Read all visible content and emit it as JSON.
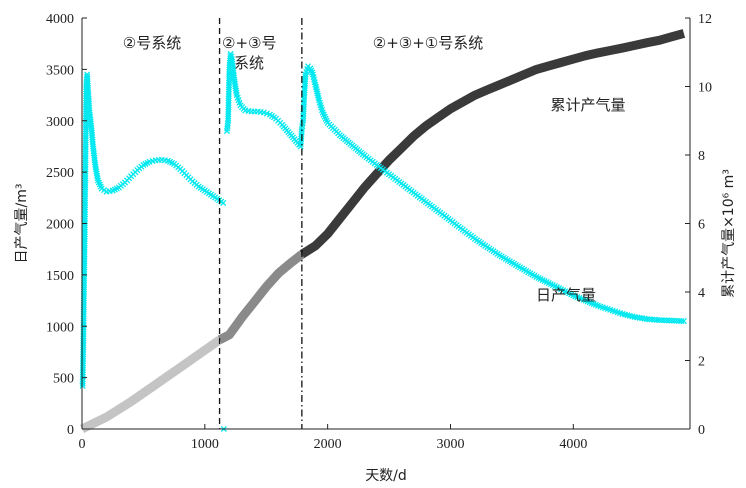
{
  "chart_data": {
    "type": "scatter",
    "xlabel": "天数/d",
    "ylabel_left": "日产气量/m³",
    "ylabel_right": "累计产气量×10⁶ m³",
    "xlim": [
      0,
      4950
    ],
    "ylim_left": [
      0,
      4000
    ],
    "ylim_right": [
      0,
      12
    ],
    "x_ticks": [
      0,
      1000,
      2000,
      3000,
      4000
    ],
    "y_ticks_left": [
      0,
      500,
      1000,
      1500,
      2000,
      2500,
      3000,
      3500,
      4000
    ],
    "y_ticks_right": [
      0,
      2,
      4,
      6,
      8,
      10,
      12
    ],
    "grid": false,
    "stage_dividers": [
      {
        "x": 1120,
        "style": "dashed"
      },
      {
        "x": 1790,
        "style": "dashdot"
      }
    ],
    "stage_labels": [
      "②号系统",
      "②+③号系统",
      "②+③+①号系统"
    ],
    "series": [
      {
        "name": "日产气量",
        "axis": "left",
        "marker": "x",
        "color": "#00e8f0",
        "points": [
          [
            5,
            420
          ],
          [
            10,
            750
          ],
          [
            15,
            1250
          ],
          [
            22,
            1850
          ],
          [
            28,
            2550
          ],
          [
            35,
            3350
          ],
          [
            42,
            3450
          ],
          [
            50,
            3300
          ],
          [
            60,
            3100
          ],
          [
            75,
            2950
          ],
          [
            90,
            2750
          ],
          [
            110,
            2550
          ],
          [
            130,
            2420
          ],
          [
            160,
            2340
          ],
          [
            200,
            2310
          ],
          [
            250,
            2320
          ],
          [
            300,
            2350
          ],
          [
            350,
            2400
          ],
          [
            400,
            2460
          ],
          [
            450,
            2520
          ],
          [
            500,
            2570
          ],
          [
            550,
            2600
          ],
          [
            600,
            2615
          ],
          [
            650,
            2620
          ],
          [
            700,
            2610
          ],
          [
            750,
            2580
          ],
          [
            800,
            2530
          ],
          [
            850,
            2470
          ],
          [
            900,
            2410
          ],
          [
            950,
            2360
          ],
          [
            1000,
            2320
          ],
          [
            1050,
            2280
          ],
          [
            1100,
            2240
          ],
          [
            1150,
            2200
          ],
          [
            1155,
            0
          ],
          [
            1180,
            2900
          ],
          [
            1190,
            3000
          ],
          [
            1200,
            3520
          ],
          [
            1210,
            3650
          ],
          [
            1220,
            3600
          ],
          [
            1240,
            3400
          ],
          [
            1260,
            3250
          ],
          [
            1290,
            3150
          ],
          [
            1330,
            3100
          ],
          [
            1380,
            3090
          ],
          [
            1430,
            3090
          ],
          [
            1480,
            3080
          ],
          [
            1530,
            3060
          ],
          [
            1580,
            3020
          ],
          [
            1630,
            2960
          ],
          [
            1680,
            2890
          ],
          [
            1730,
            2820
          ],
          [
            1780,
            2750
          ],
          [
            1790,
            2920
          ],
          [
            1800,
            3000
          ],
          [
            1810,
            3250
          ],
          [
            1820,
            3450
          ],
          [
            1840,
            3530
          ],
          [
            1860,
            3510
          ],
          [
            1880,
            3450
          ],
          [
            1900,
            3350
          ],
          [
            1930,
            3200
          ],
          [
            1960,
            3080
          ],
          [
            2000,
            2980
          ],
          [
            2100,
            2860
          ],
          [
            2200,
            2760
          ],
          [
            2300,
            2660
          ],
          [
            2400,
            2570
          ],
          [
            2500,
            2480
          ],
          [
            2600,
            2390
          ],
          [
            2700,
            2300
          ],
          [
            2800,
            2210
          ],
          [
            2900,
            2120
          ],
          [
            3000,
            2030
          ],
          [
            3100,
            1940
          ],
          [
            3200,
            1850
          ],
          [
            3300,
            1770
          ],
          [
            3400,
            1690
          ],
          [
            3500,
            1620
          ],
          [
            3600,
            1550
          ],
          [
            3700,
            1480
          ],
          [
            3800,
            1420
          ],
          [
            3900,
            1360
          ],
          [
            4000,
            1300
          ],
          [
            4100,
            1250
          ],
          [
            4200,
            1200
          ],
          [
            4300,
            1160
          ],
          [
            4400,
            1120
          ],
          [
            4500,
            1090
          ],
          [
            4600,
            1070
          ],
          [
            4700,
            1060
          ],
          [
            4800,
            1055
          ],
          [
            4900,
            1050
          ]
        ]
      },
      {
        "name": "累计产气量",
        "axis": "right",
        "segments": [
          {
            "color": "#c4c4c4",
            "points": [
              [
                0,
                0
              ],
              [
                200,
                0.35
              ],
              [
                400,
                0.8
              ],
              [
                600,
                1.3
              ],
              [
                800,
                1.8
              ],
              [
                1000,
                2.3
              ],
              [
                1120,
                2.6
              ]
            ]
          },
          {
            "color": "#8a8a8a",
            "points": [
              [
                1120,
                2.6
              ],
              [
                1200,
                2.75
              ],
              [
                1300,
                3.25
              ],
              [
                1400,
                3.7
              ],
              [
                1500,
                4.15
              ],
              [
                1600,
                4.55
              ],
              [
                1700,
                4.85
              ],
              [
                1790,
                5.1
              ]
            ]
          },
          {
            "color": "#3a3a3a",
            "points": [
              [
                1790,
                5.1
              ],
              [
                1900,
                5.35
              ],
              [
                2000,
                5.7
              ],
              [
                2100,
                6.15
              ],
              [
                2200,
                6.6
              ],
              [
                2300,
                7.05
              ],
              [
                2400,
                7.45
              ],
              [
                2500,
                7.85
              ],
              [
                2600,
                8.2
              ],
              [
                2700,
                8.55
              ],
              [
                2800,
                8.85
              ],
              [
                2900,
                9.1
              ],
              [
                3000,
                9.35
              ],
              [
                3100,
                9.55
              ],
              [
                3200,
                9.75
              ],
              [
                3300,
                9.9
              ],
              [
                3400,
                10.05
              ],
              [
                3500,
                10.2
              ],
              [
                3600,
                10.35
              ],
              [
                3700,
                10.5
              ],
              [
                3800,
                10.6
              ],
              [
                3900,
                10.7
              ],
              [
                4000,
                10.8
              ],
              [
                4100,
                10.9
              ],
              [
                4200,
                10.98
              ],
              [
                4300,
                11.05
              ],
              [
                4400,
                11.12
              ],
              [
                4500,
                11.2
              ],
              [
                4600,
                11.28
              ],
              [
                4700,
                11.35
              ],
              [
                4800,
                11.45
              ],
              [
                4900,
                11.55
              ]
            ]
          }
        ]
      }
    ]
  }
}
